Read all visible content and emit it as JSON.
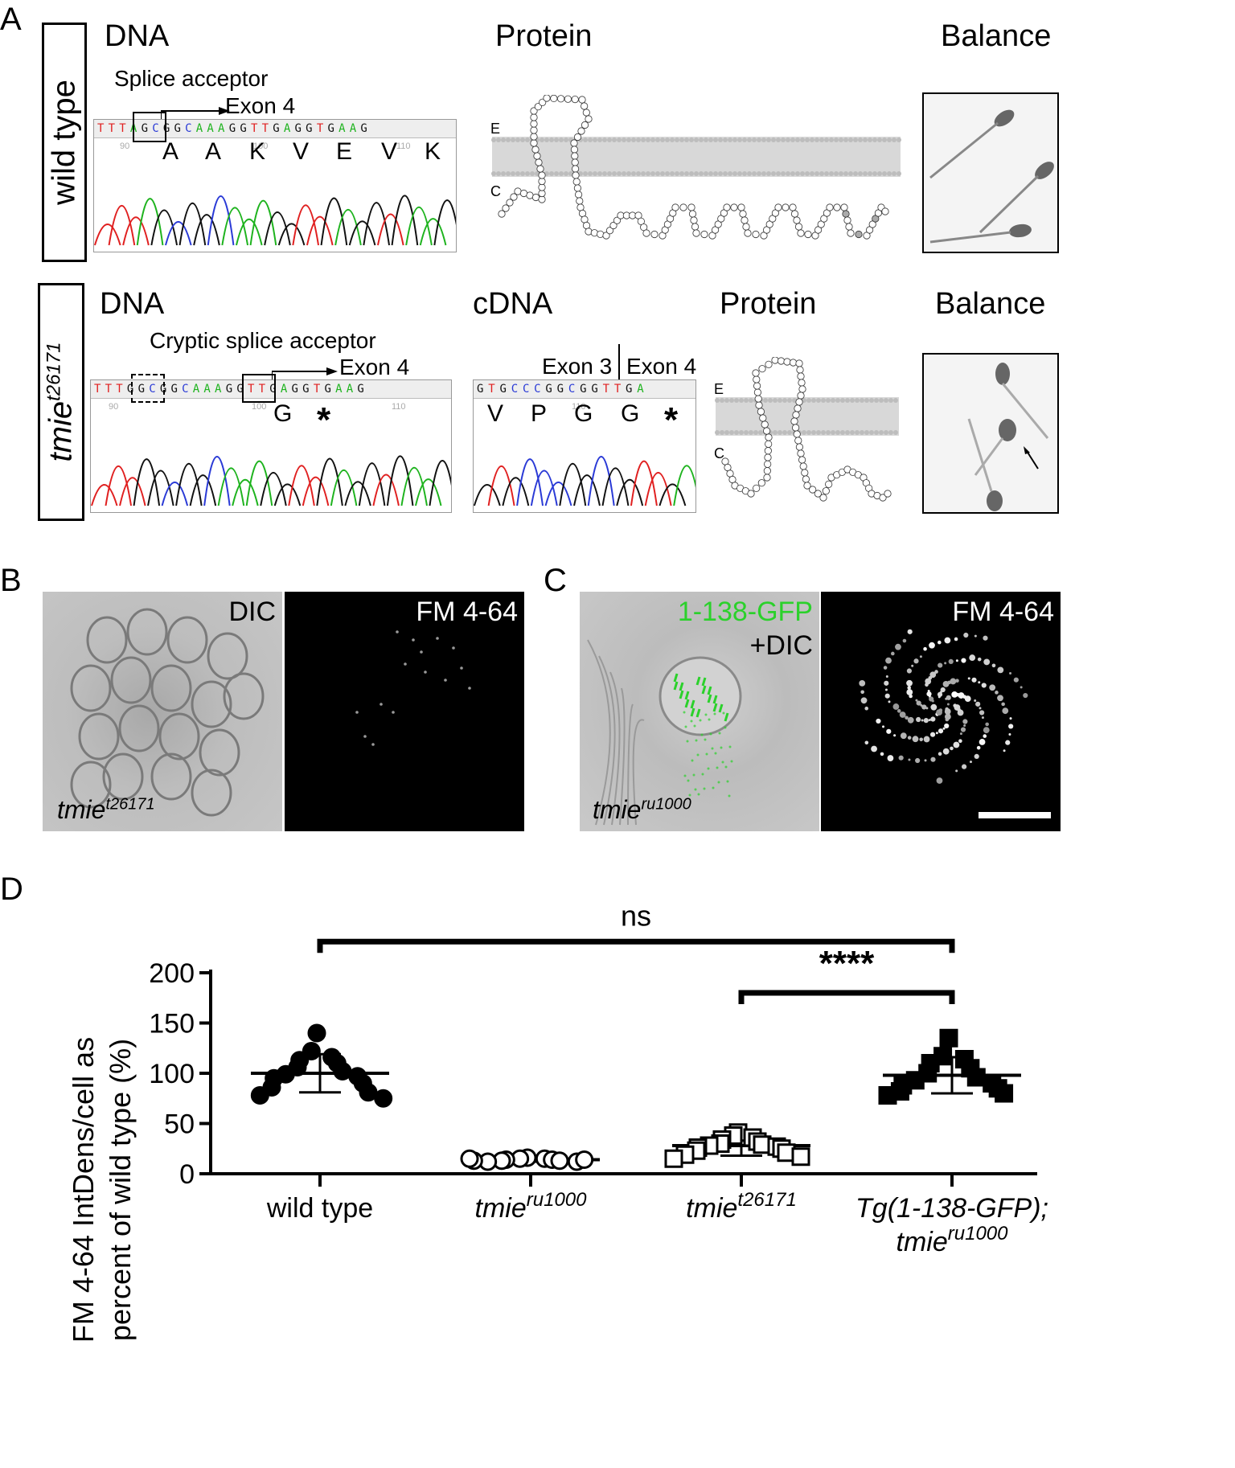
{
  "panelA": {
    "letter": "A",
    "wt": {
      "row_label": "wild type",
      "dna_title": "DNA",
      "protein_title": "Protein",
      "balance_title": "Balance",
      "splice_label": "Splice acceptor",
      "exon_label": "Exon 4",
      "sequence": "TTTAGCGGCAAAGGTTGAGGTGAAG",
      "ticks": [
        "90",
        "100",
        "110"
      ],
      "amino_acids": [
        "A",
        "A",
        "K",
        "V",
        "E",
        "V",
        "K"
      ],
      "protein_e": "E",
      "protein_c": "C"
    },
    "mut": {
      "row_label_base": "tmie",
      "row_label_sup": "t26171",
      "dna_title": "DNA",
      "cdna_title": "cDNA",
      "protein_title": "Protein",
      "balance_title": "Balance",
      "cryptic_label": "Cryptic splice acceptor",
      "exon_label": "Exon 4",
      "sequence": "TTTGGCGGCAAAGGTTGAGGTGAAG",
      "ticks": [
        "90",
        "100",
        "110"
      ],
      "aa_dna": [
        "G",
        "*"
      ],
      "cdna_sequence": "GTGCCCGGCGGTTGA",
      "cdna_tick": "110",
      "exon3_label": "Exon 3",
      "exon4_label": "Exon 4",
      "aa_cdna": [
        "V",
        "P",
        "G",
        "G",
        "*"
      ],
      "protein_e": "E",
      "protein_c": "C"
    }
  },
  "panelB": {
    "letter": "B",
    "dic_label": "DIC",
    "fm_label": "FM 4-64",
    "genotype_base": "tmie",
    "genotype_sup": "t26171"
  },
  "panelC": {
    "letter": "C",
    "gfp_label": "1-138-GFP",
    "dic_label": "+DIC",
    "fm_label": "FM 4-64",
    "genotype_base": "tmie",
    "genotype_sup": "ru1000",
    "gfp_color": "#2bd12b"
  },
  "panelD": {
    "letter": "D",
    "sig_ns": "ns",
    "sig_stars": "****"
  },
  "chart_data": {
    "type": "scatter",
    "ylabel_line1": "FM 4-64 IntDens/cell as",
    "ylabel_line2": "percent of wild type (%)",
    "ylim": [
      0,
      200
    ],
    "yticks": [
      "0",
      "50",
      "100",
      "150",
      "200"
    ],
    "categories": [
      {
        "base": "wild type",
        "sup": "",
        "tail": ""
      },
      {
        "base": "tmie",
        "sup": "ru1000",
        "tail": ""
      },
      {
        "base": "tmie",
        "sup": "t26171",
        "tail": ""
      },
      {
        "base": "Tg(1-138-GFP);",
        "sup": "",
        "tail": "",
        "line2_base": "tmie",
        "line2_sup": "ru1000"
      }
    ],
    "series": [
      {
        "marker": "filled-circle",
        "mean": 100,
        "sd": 19,
        "values": [
          140,
          122,
          116,
          113,
          110,
          106,
          102,
          99,
          97,
          95,
          90,
          86,
          81,
          78,
          75
        ]
      },
      {
        "marker": "open-circle",
        "mean": 14,
        "sd": 2,
        "values": [
          16,
          15,
          15,
          14,
          14,
          13,
          13,
          12,
          12,
          13,
          14,
          15
        ]
      },
      {
        "marker": "open-square",
        "mean": 28,
        "sd": 10,
        "values": [
          41,
          38,
          36,
          34,
          32,
          30,
          29,
          28,
          27,
          26,
          25,
          23,
          21,
          19,
          17,
          15
        ]
      },
      {
        "marker": "filled-square",
        "mean": 98,
        "sd": 18,
        "values": [
          135,
          117,
          114,
          110,
          105,
          100,
          96,
          93,
          90,
          88,
          85,
          82,
          80,
          78
        ]
      }
    ],
    "comparisons": [
      {
        "from": 0,
        "to": 3,
        "label": "ns"
      },
      {
        "from": 2,
        "to": 3,
        "label": "****"
      }
    ]
  }
}
